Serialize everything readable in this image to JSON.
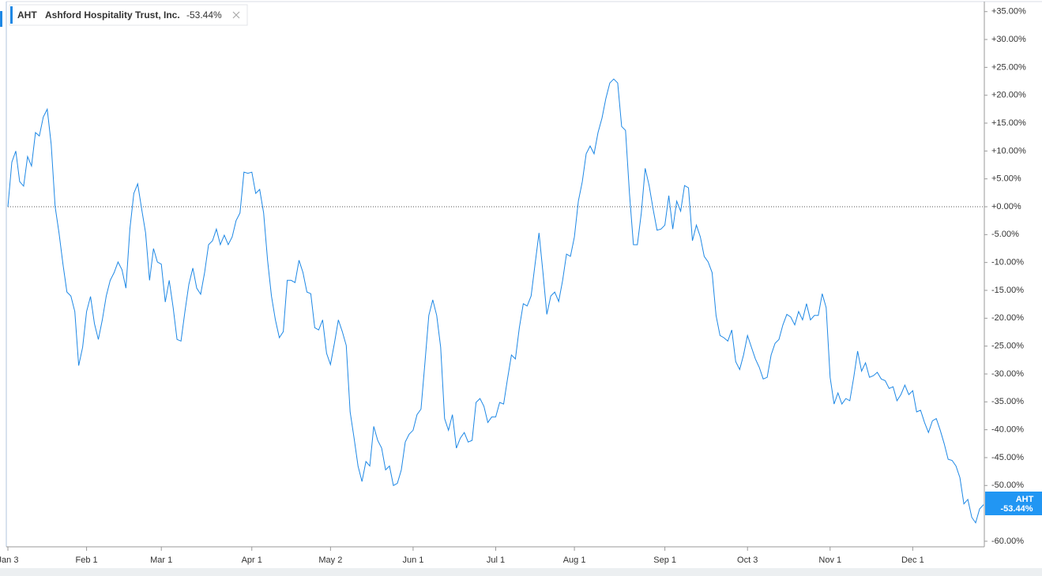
{
  "chart_data": {
    "type": "line",
    "series": [
      {
        "name": "AHT",
        "full_name": "Ashford Hospitality Trust, Inc.",
        "change_label": "-53.44%",
        "color": "#1e88e5",
        "values": [
          0,
          8,
          10,
          4.5,
          3.7,
          9,
          7.3,
          13.3,
          12.7,
          16.1,
          17.5,
          11.2,
          0,
          -4.7,
          -10.3,
          -15.3,
          -16,
          -18.8,
          -28.5,
          -25.2,
          -18.8,
          -16.1,
          -21,
          -23.8,
          -20.3,
          -16,
          -13.2,
          -11.8,
          -9.9,
          -11.3,
          -14.6,
          -4,
          2.4,
          4.1,
          -0.4,
          -4.7,
          -13.2,
          -7.5,
          -9.9,
          -10.3,
          -17.1,
          -13.2,
          -18.1,
          -23.8,
          -24.1,
          -18.8,
          -13.9,
          -11,
          -14.6,
          -15.7,
          -11.8,
          -6.8,
          -6.1,
          -4,
          -6.8,
          -5.1,
          -6.8,
          -5.4,
          -2.5,
          -1.1,
          6.2,
          6,
          6.2,
          2.4,
          3.1,
          -1.1,
          -9.6,
          -16,
          -20.3,
          -23.5,
          -22.4,
          -13.2,
          -13.2,
          -13.6,
          -9.6,
          -11.8,
          -15.3,
          -15.6,
          -21.7,
          -22.1,
          -20.3,
          -26.3,
          -28.3,
          -24.5,
          -20.3,
          -22.4,
          -24.9,
          -36.8,
          -41.5,
          -46.5,
          -49.3,
          -45.7,
          -46.5,
          -39.4,
          -41.9,
          -43.3,
          -47.2,
          -46.5,
          -50,
          -49.6,
          -47.2,
          -42.2,
          -40.8,
          -40.1,
          -37.3,
          -36.3,
          -28,
          -19.5,
          -16.7,
          -19.5,
          -25.2,
          -38,
          -40.1,
          -37.3,
          -43.3,
          -41.5,
          -40.5,
          -42.2,
          -41.9,
          -35.1,
          -34.4,
          -35.8,
          -38.7,
          -37.7,
          -37.7,
          -35.1,
          -35.4,
          -30.9,
          -26.6,
          -27.3,
          -21.7,
          -17.4,
          -17.8,
          -16,
          -10.3,
          -4.7,
          -11.8,
          -19.3,
          -16,
          -15.3,
          -17,
          -13.2,
          -8.5,
          -8.9,
          -5.4,
          1,
          4.5,
          9.5,
          10.9,
          9.5,
          13.3,
          15.9,
          19.4,
          22.2,
          22.9,
          22.2,
          14.4,
          13.7,
          2.4,
          -6.8,
          -6.8,
          -1.1,
          6.9,
          3.8,
          -0.4,
          -4.2,
          -4,
          -3.3,
          2,
          -4,
          1,
          -0.8,
          3.8,
          3.4,
          -6.1,
          -3.3,
          -5.4,
          -8.9,
          -9.9,
          -11.8,
          -19.5,
          -23.1,
          -23.5,
          -24.1,
          -22.1,
          -27.8,
          -29.2,
          -26.6,
          -23.1,
          -25.2,
          -27.3,
          -28.8,
          -30.9,
          -30.6,
          -26.6,
          -24.5,
          -23.8,
          -21.2,
          -19.3,
          -19.8,
          -21.2,
          -18.8,
          -20.3,
          -17.4,
          -20.3,
          -19.5,
          -19.5,
          -15.6,
          -18.1,
          -30.6,
          -35.4,
          -33.4,
          -35.4,
          -34.4,
          -34.8,
          -30.6,
          -25.9,
          -29.5,
          -28,
          -30.6,
          -30.3,
          -29.7,
          -30.9,
          -31.2,
          -32.6,
          -32.3,
          -34.8,
          -33.7,
          -32,
          -33.7,
          -33,
          -36.8,
          -36.5,
          -38.7,
          -40.5,
          -38.4,
          -38,
          -40.1,
          -42.5,
          -45.3,
          -45.5,
          -46.5,
          -48.6,
          -53.3,
          -52.5,
          -55.7,
          -56.7,
          -54.2,
          -53.44
        ]
      }
    ],
    "x": [
      0,
      1,
      2,
      3,
      4,
      5,
      6,
      7,
      8,
      9,
      10,
      11,
      12,
      13,
      14,
      15,
      16,
      17,
      18,
      19,
      20,
      21,
      22,
      23,
      24,
      25,
      26,
      27,
      28,
      29,
      30,
      31,
      32,
      33,
      34,
      35,
      36,
      37,
      38,
      39,
      40,
      41,
      42,
      43,
      44,
      45,
      46,
      47,
      48,
      49,
      50,
      51,
      52,
      53,
      54,
      55,
      56,
      57,
      58,
      59,
      60,
      61,
      62,
      63,
      64,
      65,
      66,
      67,
      68,
      69,
      70,
      71,
      72,
      73,
      74,
      75,
      76,
      77,
      78,
      79,
      80,
      81,
      82,
      83,
      84,
      85,
      86,
      87,
      88,
      89,
      90,
      91,
      92,
      93,
      94,
      95,
      96,
      97,
      98,
      99,
      100,
      101,
      102,
      103,
      104,
      105,
      106,
      107,
      108,
      109,
      110,
      111,
      112,
      113,
      114,
      115,
      116,
      117,
      118,
      119,
      120,
      121,
      122,
      123,
      124,
      125,
      126,
      127,
      128,
      129,
      130,
      131,
      132,
      133,
      134,
      135,
      136,
      137,
      138,
      139,
      140,
      141,
      142,
      143,
      144,
      145,
      146,
      147,
      148,
      149,
      150,
      151,
      152,
      153,
      154,
      155,
      156,
      157,
      158,
      159,
      160,
      161,
      162,
      163,
      164,
      165,
      166,
      167,
      168,
      169,
      170,
      171,
      172,
      173,
      174,
      175,
      176,
      177,
      178,
      179,
      180,
      181,
      182,
      183,
      184,
      185,
      186,
      187,
      188,
      189,
      190,
      191,
      192,
      193,
      194,
      195,
      196,
      197,
      198,
      199,
      200,
      201,
      202,
      203,
      204,
      205,
      206,
      207,
      208,
      209,
      210,
      211,
      212,
      213,
      214,
      215,
      216,
      217,
      218,
      219,
      220,
      221,
      222,
      223,
      224,
      225,
      226,
      227,
      228,
      229,
      230,
      231,
      232,
      233,
      234,
      235,
      236,
      237,
      238,
      239,
      240,
      241,
      242,
      243,
      244,
      245,
      246,
      247,
      248
    ],
    "xlim": [
      0,
      248
    ],
    "xticks": [
      {
        "value": 0,
        "label": "Jan 3"
      },
      {
        "value": 20,
        "label": "Feb 1"
      },
      {
        "value": 39,
        "label": "Mar 1"
      },
      {
        "value": 62,
        "label": "Apr 1"
      },
      {
        "value": 82,
        "label": "May 2"
      },
      {
        "value": 103,
        "label": "Jun 1"
      },
      {
        "value": 124,
        "label": "Jul 1"
      },
      {
        "value": 144,
        "label": "Aug 1"
      },
      {
        "value": 167,
        "label": "Sep 1"
      },
      {
        "value": 188,
        "label": "Oct 3"
      },
      {
        "value": 209,
        "label": "Nov 1"
      },
      {
        "value": 230,
        "label": "Dec 1"
      }
    ],
    "ylim": [
      -61,
      36.8
    ],
    "yticks": [
      {
        "value": 35,
        "label": "+35.00%"
      },
      {
        "value": 30,
        "label": "+30.00%"
      },
      {
        "value": 25,
        "label": "+25.00%"
      },
      {
        "value": 20,
        "label": "+20.00%"
      },
      {
        "value": 15,
        "label": "+15.00%"
      },
      {
        "value": 10,
        "label": "+10.00%"
      },
      {
        "value": 5,
        "label": "+5.00%"
      },
      {
        "value": 0,
        "label": "+0.00%"
      },
      {
        "value": -5,
        "label": "-5.00%"
      },
      {
        "value": -10,
        "label": "-10.00%"
      },
      {
        "value": -15,
        "label": "-15.00%"
      },
      {
        "value": -20,
        "label": "-20.00%"
      },
      {
        "value": -25,
        "label": "-25.00%"
      },
      {
        "value": -30,
        "label": "-30.00%"
      },
      {
        "value": -35,
        "label": "-35.00%"
      },
      {
        "value": -40,
        "label": "-40.00%"
      },
      {
        "value": -45,
        "label": "-45.00%"
      },
      {
        "value": -50,
        "label": "-50.00%"
      },
      {
        "value": -60,
        "label": "-60.00%"
      }
    ],
    "zero_line": true,
    "grid": false,
    "y_axis_side": "right"
  }
}
